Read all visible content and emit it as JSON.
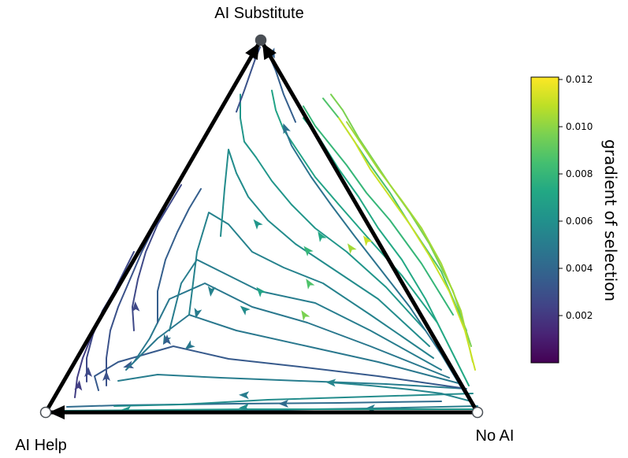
{
  "diagram": {
    "type": "ternary-phase-portrait",
    "vertices": [
      {
        "id": "top",
        "label": "AI Substitute",
        "stable": true
      },
      {
        "id": "left",
        "label": "AI Help",
        "stable": false
      },
      {
        "id": "right",
        "label": "No AI",
        "stable": false
      }
    ],
    "colorbar": {
      "label": "gradient of selection",
      "min": 0.0,
      "max": 0.0121,
      "ticks": [
        "0.002",
        "0.004",
        "0.006",
        "0.008",
        "0.010",
        "0.012"
      ],
      "tick_values": [
        0.002,
        0.004,
        0.006,
        0.008,
        0.01,
        0.012
      ],
      "colormap": "viridis"
    },
    "colors": {
      "edge": "#000000",
      "stable_point": "#4a4f55",
      "unstable_point": "#ffffff"
    }
  }
}
